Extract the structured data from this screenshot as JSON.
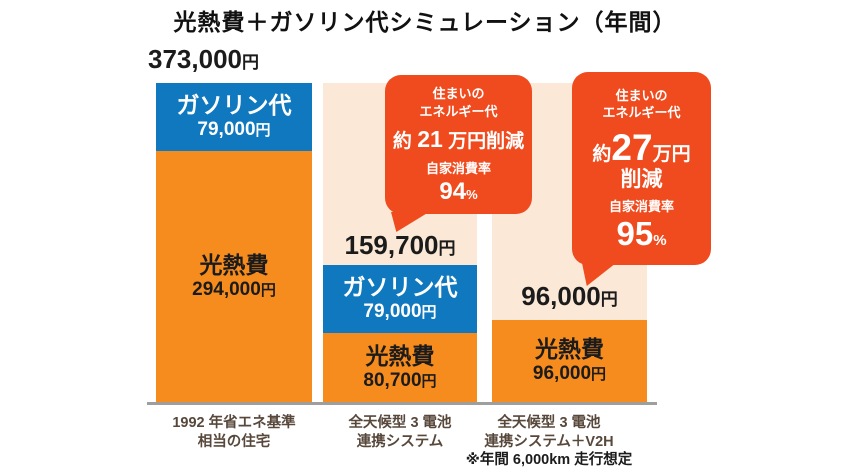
{
  "title": "光熱費＋ガソリン代シミュレーション（年間）",
  "colors": {
    "gasoline_blue": "#0f78be",
    "utility_orange": "#f68b1e",
    "comparison_peach": "#fbe8d6",
    "callout_red": "#f04b1e",
    "axis_gray": "#9e9e9e",
    "category_label_brown": "#58483c"
  },
  "chart_data": {
    "type": "bar",
    "stacked": true,
    "title": "光熱費＋ガソリン代シミュレーション（年間）",
    "unit": "円/年",
    "categories": [
      "1992 年省エネ基準 相当の住宅",
      "全天候型 3 電池 連携システム",
      "全天候型 3 電池 連携システム＋V2H"
    ],
    "series": [
      {
        "name": "ガソリン代",
        "color": "#0f78be",
        "values": [
          79000,
          79000,
          0
        ]
      },
      {
        "name": "光熱費",
        "color": "#f68b1e",
        "values": [
          294000,
          80700,
          96000
        ]
      }
    ],
    "totals": [
      373000,
      159700,
      96000
    ],
    "ylim": [
      0,
      373000
    ],
    "legend": false,
    "gridlines": false,
    "annotations": [
      {
        "bar_index": 1,
        "text": "住まいのエネルギー代 約21万円削減 自家消費率94%"
      },
      {
        "bar_index": 2,
        "text": "住まいのエネルギー代 約27万円削減 自家消費率95%"
      }
    ],
    "note": "※年間 6,000km 走行想定"
  },
  "bars": [
    {
      "total_value": "373,000",
      "total_unit": "円",
      "gasoline_name": "ガソリン代",
      "gasoline_amount": "79,000",
      "gasoline_unit": "円",
      "utility_name": "光熱費",
      "utility_amount": "294,000",
      "utility_unit": "円",
      "category_line1": "1992 年省エネ基準",
      "category_line2": "相当の住宅"
    },
    {
      "total_value": "159,700",
      "total_unit": "円",
      "gasoline_name": "ガソリン代",
      "gasoline_amount": "79,000",
      "gasoline_unit": "円",
      "utility_name": "光熱費",
      "utility_amount": "80,700",
      "utility_unit": "円",
      "category_line1": "全天候型 3 電池",
      "category_line2": "連携システム"
    },
    {
      "total_value": "96,000",
      "total_unit": "円",
      "utility_name": "光熱費",
      "utility_amount": "96,000",
      "utility_unit": "円",
      "category_line1": "全天候型 3 電池",
      "category_line2": "連携システム＋V2H",
      "category_line3": "※年間 6,000km 走行想定"
    }
  ],
  "callouts": [
    {
      "heading_line1": "住まいの",
      "heading_line2": "エネルギー代",
      "saving_prefix": "約 ",
      "saving_value": "21",
      "saving_suffix": " 万円削減",
      "rate_label": "自家消費率",
      "rate_value": "94",
      "rate_unit": "%"
    },
    {
      "heading_line1": "住まいの",
      "heading_line2": "エネルギー代",
      "saving_prefix": "約",
      "saving_value": "27",
      "saving_suffix": "万円",
      "saving_line2": "削減",
      "rate_label": "自家消費率",
      "rate_value": "95",
      "rate_unit": "%"
    }
  ]
}
